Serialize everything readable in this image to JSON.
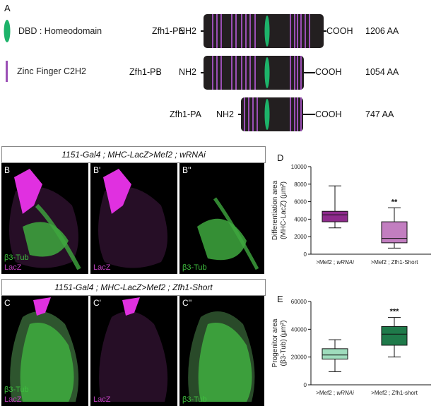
{
  "panelA": {
    "letter": "A",
    "legend": [
      {
        "label": "DBD : Homeodomain",
        "color": "#1db36a",
        "icon": "green-ellipse"
      },
      {
        "label": "Zinc Finger C2H2",
        "color": "#9b4fb5",
        "icon": "purple-bar"
      }
    ],
    "proteins": [
      {
        "name": "Zfh1-PE",
        "nterm": "NH2",
        "cterm": "COOH",
        "length": "1206 AA"
      },
      {
        "name": "Zfh1-PB",
        "nterm": "NH2",
        "cterm": "COOH",
        "length": "1054 AA"
      },
      {
        "name": "Zfh1-PA",
        "nterm": "NH2",
        "cterm": "COOH",
        "length": "747 AA"
      }
    ]
  },
  "panelB": {
    "title": "1151-Gal4 ; MHC-LacZ>Mef2 ; wRNAi",
    "images": [
      {
        "letter": "B",
        "labels": [
          "β3-Tub",
          "LacZ"
        ]
      },
      {
        "letter": "B'",
        "labels": [
          "LacZ"
        ]
      },
      {
        "letter": "B''",
        "labels": [
          "β3-Tub"
        ]
      }
    ]
  },
  "panelC": {
    "title": "1151-Gal4 ; MHC-LacZ>Mef2 ; Zfh1-Short",
    "images": [
      {
        "letter": "C",
        "labels": [
          "β3-Tub",
          "LacZ"
        ]
      },
      {
        "letter": "C'",
        "labels": [
          "LacZ"
        ]
      },
      {
        "letter": "C''",
        "labels": [
          "β3-Tub"
        ]
      }
    ]
  },
  "chart_data": [
    {
      "type": "boxplot",
      "letter": "D",
      "ylabel": "Differentiation area\n(MHC-LacZ) (μm²)",
      "ylim": [
        0,
        10000
      ],
      "yticks": [
        0,
        2000,
        4000,
        6000,
        8000,
        10000
      ],
      "categories": [
        ">Mef2 ; wRNAi",
        ">Mef2 ; Zfh1-Short"
      ],
      "boxes": [
        {
          "min": 3000,
          "q1": 3700,
          "median": 4500,
          "q3": 4900,
          "max": 7800,
          "color": "#8e2a8c",
          "significance": ""
        },
        {
          "min": 700,
          "q1": 1300,
          "median": 1800,
          "q3": 3700,
          "max": 5300,
          "color": "#c27ec0",
          "significance": "**"
        }
      ]
    },
    {
      "type": "boxplot",
      "letter": "E",
      "ylabel": "Progenitor area\n(β3-Tub) (μm²)",
      "ylim": [
        0,
        60000
      ],
      "yticks": [
        0,
        20000,
        40000,
        60000
      ],
      "categories": [
        ">Mef2 ; wRNAi",
        ">Mef2 ; Zfh1-short"
      ],
      "boxes": [
        {
          "min": 9500,
          "q1": 18500,
          "median": 21500,
          "q3": 26000,
          "max": 32500,
          "color": "#9fdcbd",
          "significance": ""
        },
        {
          "min": 20000,
          "q1": 28500,
          "median": 36500,
          "q3": 42000,
          "max": 48500,
          "color": "#1f7a4a",
          "significance": "***"
        }
      ]
    }
  ]
}
